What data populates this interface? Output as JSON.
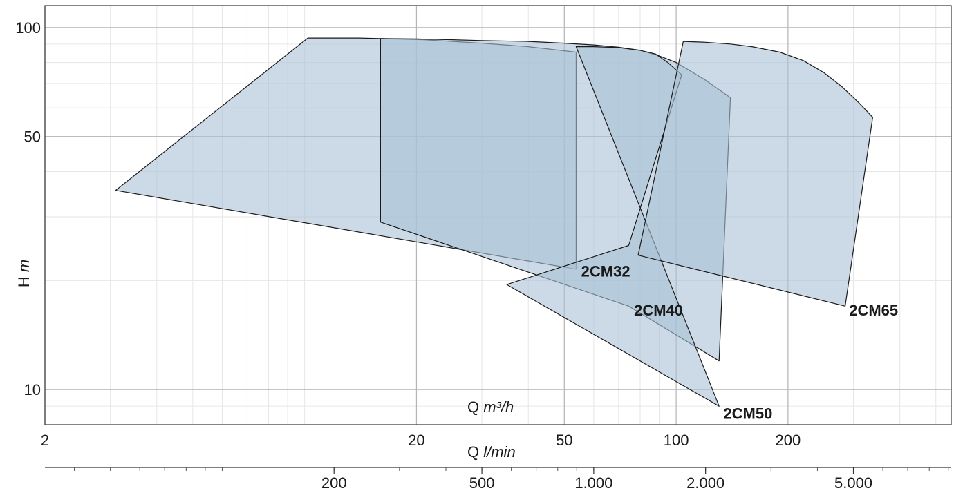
{
  "chart_data": {
    "type": "area",
    "title": "",
    "x_axis": {
      "scale": "log",
      "range": [
        2,
        550
      ],
      "ticks": [
        {
          "value": 2,
          "label": "2"
        },
        {
          "value": 20,
          "label": "20"
        },
        {
          "value": 50,
          "label": "50"
        },
        {
          "value": 100,
          "label": "100"
        },
        {
          "value": 200,
          "label": "200"
        }
      ],
      "label_prefix": "Q",
      "label_unit": "m³/h"
    },
    "x2_axis": {
      "scale": "log",
      "unit_note": "l/min",
      "label_prefix": "Q",
      "label_unit": "l/min",
      "ticks": [
        {
          "value": 200,
          "label": "200"
        },
        {
          "value": 500,
          "label": "500"
        },
        {
          "value": 1000,
          "label": "1.000"
        },
        {
          "value": 2000,
          "label": "2.000"
        },
        {
          "value": 5000,
          "label": "5.000"
        }
      ]
    },
    "y_axis": {
      "scale": "log",
      "range": [
        8,
        115
      ],
      "ticks": [
        {
          "value": 10,
          "label": "10"
        },
        {
          "value": 50,
          "label": "50"
        },
        {
          "value": 100,
          "label": "100"
        }
      ],
      "label_prefix": "H",
      "label_unit": "m"
    },
    "grid": true,
    "fill_color": "#a8c2d6",
    "stroke_color": "#1a1a1a",
    "series": [
      {
        "name": "2CM32",
        "points": [
          [
            10.2,
            93.5
          ],
          [
            12,
            93.5
          ],
          [
            14,
            93.5
          ],
          [
            16,
            93.2
          ],
          [
            18,
            92.9
          ],
          [
            21,
            92.5
          ],
          [
            25,
            91.5
          ],
          [
            30,
            90.5
          ],
          [
            40,
            88.5
          ],
          [
            53.8,
            85.5
          ],
          [
            53.8,
            21.5
          ],
          [
            3.1,
            35.5
          ]
        ]
      },
      {
        "name": "2CM40",
        "points": [
          [
            16,
            93.2
          ],
          [
            20,
            93.0
          ],
          [
            25,
            92.5
          ],
          [
            30,
            92.0
          ],
          [
            40,
            91.5
          ],
          [
            50,
            90.5
          ],
          [
            60,
            89.5
          ],
          [
            70,
            88.2
          ],
          [
            80,
            86.5
          ],
          [
            90,
            83.5
          ],
          [
            100,
            80.0
          ],
          [
            110,
            75.5
          ],
          [
            120,
            71.5
          ],
          [
            130,
            67.5
          ],
          [
            140,
            64.0
          ],
          [
            130.5,
            12.0
          ],
          [
            74.5,
            17.0
          ],
          [
            16,
            29.0
          ]
        ]
      },
      {
        "name": "2CM50",
        "points": [
          [
            53.8,
            88.5
          ],
          [
            60,
            88.5
          ],
          [
            70,
            88.0
          ],
          [
            80,
            86.5
          ],
          [
            88,
            84.5
          ],
          [
            95,
            80.0
          ],
          [
            103.5,
            74.0
          ],
          [
            74.5,
            25.0
          ],
          [
            35,
            19.5
          ],
          [
            130.5,
            9.0
          ]
        ]
      },
      {
        "name": "2CM65",
        "points": [
          [
            104.5,
            91.5
          ],
          [
            120,
            91.0
          ],
          [
            140,
            90.0
          ],
          [
            160,
            88.5
          ],
          [
            190,
            85.5
          ],
          [
            220,
            81.0
          ],
          [
            250,
            75.0
          ],
          [
            280,
            68.5
          ],
          [
            310,
            62.0
          ],
          [
            338,
            56.5
          ],
          [
            285,
            17.0
          ],
          [
            79,
            23.5
          ]
        ]
      }
    ],
    "series_label_positions": [
      {
        "name": "2CM32",
        "anchor_x": 55.5,
        "anchor_y": 20.5
      },
      {
        "name": "2CM40",
        "anchor_x": 77,
        "anchor_y": 16.0
      },
      {
        "name": "2CM50",
        "anchor_x": 134,
        "anchor_y": 8.3
      },
      {
        "name": "2CM65",
        "anchor_x": 292,
        "anchor_y": 16.0
      }
    ]
  }
}
